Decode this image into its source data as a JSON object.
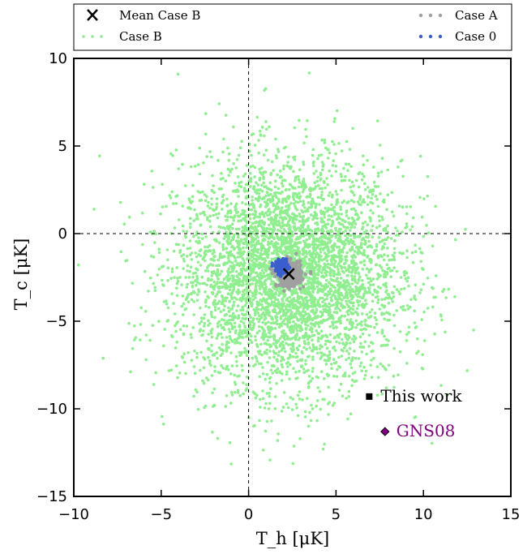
{
  "chart_data": {
    "type": "scatter",
    "xlabel": "T_h [μK]",
    "ylabel": "T_c [μK]",
    "xlim": [
      -10,
      15
    ],
    "ylim": [
      -15,
      10
    ],
    "xticks": [
      -10,
      -5,
      0,
      5,
      10,
      15
    ],
    "yticks": [
      -15,
      -10,
      -5,
      0,
      5,
      10
    ],
    "xtick_labels": [
      "−10",
      "−5",
      "0",
      "5",
      "10",
      "15"
    ],
    "ytick_labels": [
      "−15",
      "−10",
      "−5",
      "0",
      "5",
      "10"
    ],
    "reference_lines": {
      "x": 0,
      "y": 0,
      "style": "dashed"
    },
    "legend": {
      "placement": "above plot",
      "entries": [
        {
          "label": "Mean Case B",
          "marker": "x",
          "color": "#000000"
        },
        {
          "label": "Case B",
          "marker": "dot",
          "color": "#90ee90"
        },
        {
          "label": "Case A",
          "marker": "dot",
          "color": "#a0a0a0"
        },
        {
          "label": "Case 0",
          "marker": "dot",
          "color": "#3a5fcd"
        }
      ]
    },
    "series": [
      {
        "name": "Case B",
        "color": "#90ee90",
        "distribution": "gaussian cloud",
        "center": [
          2.3,
          -2.3
        ],
        "sigma": [
          3.2,
          3.2
        ],
        "n": 4500
      },
      {
        "name": "Case A",
        "color": "#a0a0a0",
        "distribution": "gaussian cloud",
        "center": [
          2.3,
          -2.3
        ],
        "sigma": [
          0.35,
          0.35
        ],
        "n": 500
      },
      {
        "name": "Case 0",
        "color": "#3a5fcd",
        "distribution": "gaussian cloud",
        "center": [
          1.9,
          -1.9
        ],
        "sigma": [
          0.18,
          0.18
        ],
        "n": 250
      },
      {
        "name": "Mean Case B",
        "color": "#000000",
        "marker": "x",
        "points": [
          [
            2.3,
            -2.3
          ]
        ]
      }
    ],
    "annotations": [
      {
        "label": "This work",
        "x": 6.9,
        "y": -9.3,
        "marker": "square",
        "color": "#000000"
      },
      {
        "label": "GNS08",
        "x": 7.8,
        "y": -11.3,
        "marker": "diamond",
        "color": "#800080"
      }
    ]
  }
}
